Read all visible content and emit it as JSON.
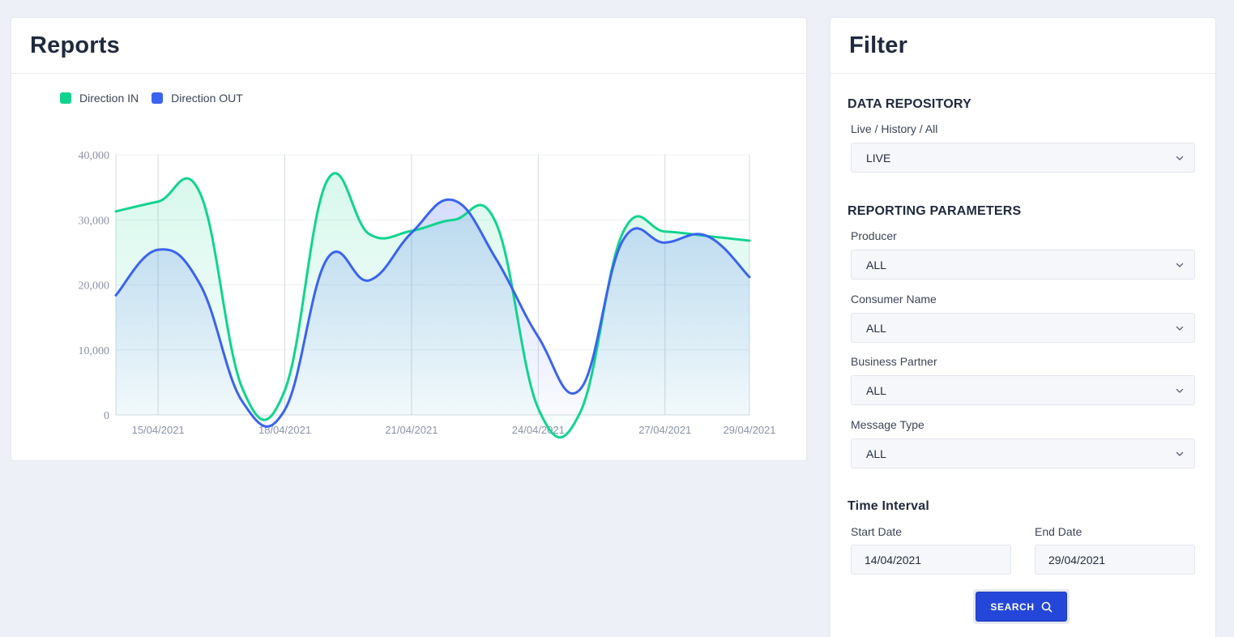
{
  "reports": {
    "title": "Reports"
  },
  "filter": {
    "title": "Filter",
    "data_repository": {
      "title": "DATA REPOSITORY",
      "label": "Live / History / All",
      "value": "LIVE"
    },
    "reporting_parameters": {
      "title": "REPORTING PARAMETERS",
      "fields": [
        {
          "label": "Producer",
          "value": "ALL"
        },
        {
          "label": "Consumer Name",
          "value": "ALL"
        },
        {
          "label": "Business Partner",
          "value": "ALL"
        },
        {
          "label": "Message Type",
          "value": "ALL"
        }
      ]
    },
    "time_interval": {
      "title": "Time Interval",
      "start_label": "Start Date",
      "start_value": "14/04/2021",
      "end_label": "End Date",
      "end_value": "29/04/2021"
    },
    "search_label": "SEARCH",
    "icons": {
      "select": "chevron-down-icon",
      "search": "search-icon"
    }
  },
  "chart_data": {
    "type": "area",
    "x": [
      "14/04/2021",
      "15/04/2021",
      "16/04/2021",
      "17/04/2021",
      "18/04/2021",
      "19/04/2021",
      "20/04/2021",
      "21/04/2021",
      "22/04/2021",
      "23/04/2021",
      "24/04/2021",
      "25/04/2021",
      "26/04/2021",
      "27/04/2021",
      "28/04/2021",
      "29/04/2021"
    ],
    "x_tick_labels": [
      "15/04/2021",
      "18/04/2021",
      "21/04/2021",
      "24/04/2021",
      "27/04/2021",
      "29/04/2021"
    ],
    "ylim": [
      0,
      40000
    ],
    "y_ticks": [
      "0",
      "10,000",
      "20,000",
      "30,000",
      "40,000"
    ],
    "y_tick_values": [
      0,
      10000,
      20000,
      30000,
      40000
    ],
    "grid": true,
    "legend_position": "top-left",
    "series": [
      {
        "name": "Direction IN",
        "color": "#10d48e",
        "values": [
          31300,
          32800,
          34000,
          4000,
          3800,
          36000,
          27800,
          28300,
          30000,
          29500,
          1000,
          500,
          28000,
          28200,
          27500,
          26800
        ]
      },
      {
        "name": "Direction OUT",
        "color": "#3a63f0",
        "values": [
          18400,
          25400,
          20000,
          2000,
          800,
          24000,
          20700,
          28000,
          33000,
          24000,
          12000,
          4000,
          26800,
          26500,
          27500,
          21200
        ]
      }
    ]
  }
}
